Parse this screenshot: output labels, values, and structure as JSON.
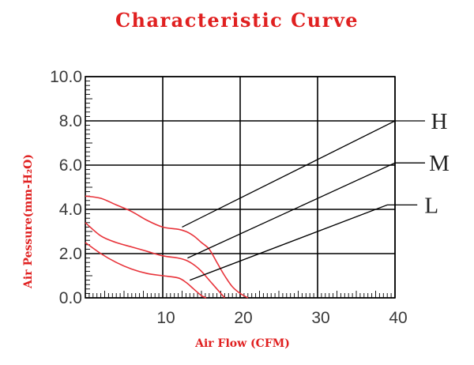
{
  "chart_data": {
    "type": "line",
    "title": "Characteristic Curve",
    "xlabel": "Air Flow (CFM)",
    "ylabel": "Air Pessure(mm-H₂O)",
    "xlim": [
      0,
      40
    ],
    "ylim": [
      0,
      10
    ],
    "grid": true,
    "x_ticks": [
      "10",
      "20",
      "30",
      "40"
    ],
    "y_ticks": [
      "0.0",
      "2.0",
      "4.0",
      "6.0",
      "8.0",
      "10.0"
    ],
    "series": [
      {
        "name": "H",
        "color": "#e8333a",
        "points": [
          [
            0,
            4.6
          ],
          [
            2,
            4.5
          ],
          [
            4,
            4.2
          ],
          [
            6,
            3.9
          ],
          [
            8,
            3.5
          ],
          [
            10,
            3.2
          ],
          [
            12,
            3.1
          ],
          [
            13,
            3.0
          ],
          [
            14,
            2.8
          ],
          [
            15,
            2.5
          ],
          [
            16,
            2.2
          ],
          [
            17,
            1.6
          ],
          [
            18,
            1.0
          ],
          [
            19,
            0.5
          ],
          [
            20,
            0.2
          ],
          [
            21,
            0.0
          ]
        ]
      },
      {
        "name": "M",
        "color": "#e8333a",
        "points": [
          [
            0,
            3.4
          ],
          [
            2,
            2.8
          ],
          [
            4,
            2.5
          ],
          [
            6,
            2.3
          ],
          [
            8,
            2.1
          ],
          [
            10,
            1.9
          ],
          [
            12,
            1.8
          ],
          [
            13,
            1.7
          ],
          [
            14,
            1.5
          ],
          [
            15,
            1.2
          ],
          [
            16,
            0.8
          ],
          [
            17,
            0.4
          ],
          [
            18,
            0.0
          ]
        ]
      },
      {
        "name": "L",
        "color": "#e8333a",
        "points": [
          [
            0,
            2.5
          ],
          [
            2,
            2.0
          ],
          [
            4,
            1.6
          ],
          [
            6,
            1.3
          ],
          [
            8,
            1.1
          ],
          [
            10,
            1.0
          ],
          [
            12,
            0.9
          ],
          [
            13,
            0.7
          ],
          [
            14,
            0.4
          ],
          [
            15,
            0.1
          ],
          [
            15.6,
            0.0
          ]
        ]
      }
    ],
    "callouts": [
      {
        "label": "H",
        "from": [
          12.5,
          3.2
        ],
        "to": [
          40,
          8.0
        ]
      },
      {
        "label": "M",
        "from": [
          13.2,
          1.8
        ],
        "to": [
          40,
          6.1
        ]
      },
      {
        "label": "L",
        "from": [
          13.5,
          0.8
        ],
        "to": [
          39,
          4.2
        ]
      }
    ]
  }
}
